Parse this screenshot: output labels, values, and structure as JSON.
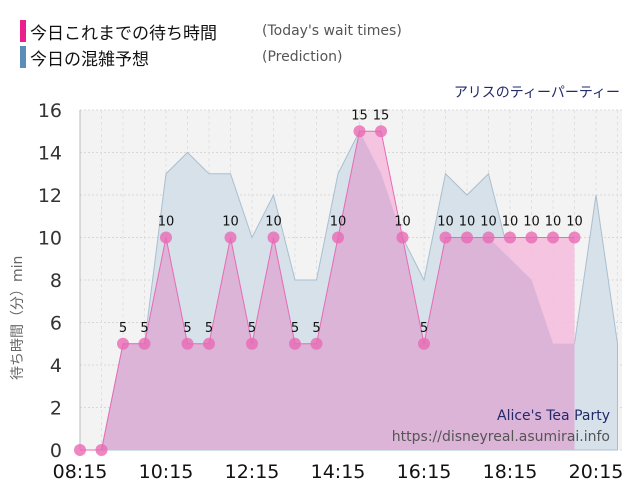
{
  "legend": {
    "items": [
      {
        "label": "今日これまでの待ち時間",
        "sub": "(Today's wait times)",
        "color": "#ec1e8c"
      },
      {
        "label": "今日の混雑予想",
        "sub": "(Prediction)",
        "color": "#5b8db8"
      }
    ]
  },
  "attraction_name_ja": "アリスのティーパーティー",
  "watermark": {
    "name": "Alice's Tea Party",
    "url": "https://disneyreal.asumirai.info"
  },
  "colors": {
    "actual_fill": "#dcb4d8",
    "actual_line": "#e86ab4",
    "actual_point": "#e86ab4",
    "actual_over_fill": "#f5bfdf",
    "prediction_fill": "#d6e1ea",
    "prediction_line": "#a9bfcf",
    "plot_bg": "#f3f3f3",
    "grid": "#d8d8d8"
  },
  "chart_data": {
    "type": "area",
    "title": "アリスのティーパーティー",
    "xlabel": "",
    "ylabel": "待ち時間（分）min",
    "ylim": [
      0,
      16
    ],
    "yticks": [
      0,
      2,
      4,
      6,
      8,
      10,
      12,
      14,
      16
    ],
    "xticks": [
      "08:15",
      "10:15",
      "12:15",
      "14:15",
      "16:15",
      "18:15",
      "20:15"
    ],
    "grid": true,
    "legend_position": "top-left",
    "x": [
      "08:15",
      "08:45",
      "09:15",
      "09:45",
      "10:15",
      "10:45",
      "11:15",
      "11:45",
      "12:15",
      "12:45",
      "13:15",
      "13:45",
      "14:15",
      "14:45",
      "15:15",
      "15:45",
      "16:15",
      "16:45",
      "17:15",
      "17:45",
      "18:15",
      "18:45",
      "19:15",
      "19:45",
      "20:15",
      "20:45"
    ],
    "series": [
      {
        "name": "今日これまでの待ち時間 (Today's wait times)",
        "values": [
          0,
          0,
          5,
          5,
          10,
          5,
          5,
          10,
          5,
          10,
          5,
          5,
          10,
          15,
          15,
          10,
          5,
          10,
          10,
          10,
          10,
          10,
          10,
          10,
          null,
          null
        ]
      },
      {
        "name": "今日の混雑予想 (Prediction)",
        "values": [
          0,
          0,
          5,
          5,
          13,
          14,
          13,
          13,
          10,
          12,
          8,
          8,
          13,
          15,
          13,
          10,
          8,
          13,
          12,
          13,
          9,
          8,
          5,
          5,
          12,
          5
        ]
      }
    ]
  }
}
